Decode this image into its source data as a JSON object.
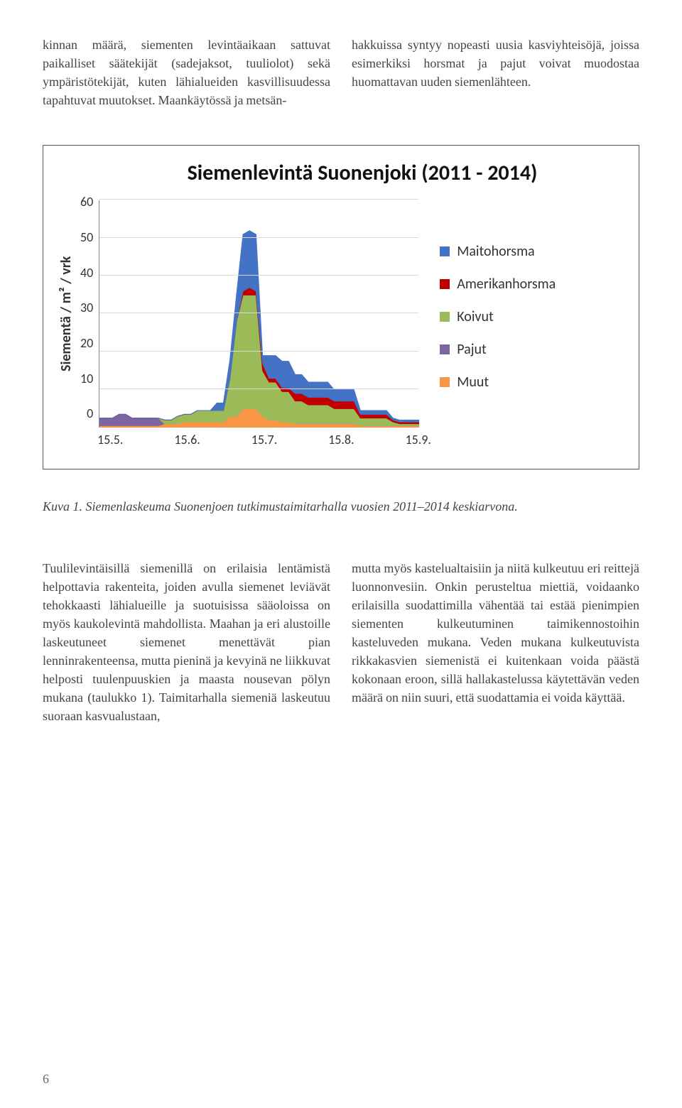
{
  "top": {
    "left": "kinnan määrä, siementen levintäaikaan sattuvat paikalliset säätekijät (sadejaksot, tuuliolot) sekä ympäristötekijät, kuten lähialueiden kasvillisuudessa tapahtuvat muutokset. Maankäytössä ja metsän-",
    "right": "hakkuissa syntyy nopeasti uusia kasviyhteisöjä, joissa esimerkiksi horsmat ja pajut voivat muodostaa huomattavan uuden siemenlähteen."
  },
  "chart": {
    "title": "Siemenlevintä Suonenjoki (2011 - 2014)",
    "ylabel": "Siementä / m² / vrk",
    "ylim": [
      0,
      60
    ],
    "yticks": [
      "60",
      "50",
      "40",
      "30",
      "20",
      "10",
      "0"
    ],
    "xticks": [
      "15.5.",
      "15.6.",
      "15.7.",
      "15.8.",
      "15.9."
    ],
    "grid_color": "#d9d9d9",
    "plot_border": "#888888",
    "legend": [
      {
        "label": "Maitohorsma",
        "color": "#4472c4"
      },
      {
        "label": "Amerikanhorsma",
        "color": "#c00000"
      },
      {
        "label": "Koivut",
        "color": "#9bbb59"
      },
      {
        "label": "Pajut",
        "color": "#8064a2"
      },
      {
        "label": "Muut",
        "color": "#f79646"
      }
    ],
    "series": {
      "muut": [
        0.5,
        0.5,
        0.5,
        0.5,
        0.5,
        0.5,
        0.5,
        0.5,
        0.5,
        0.5,
        1,
        1,
        1,
        1.5,
        1.5,
        1.5,
        1.5,
        1.5,
        1.5,
        1.5,
        3,
        3,
        5,
        5,
        5,
        3,
        2,
        2,
        1.5,
        1.5,
        1,
        1,
        1,
        1,
        1,
        1,
        1,
        1,
        1,
        1,
        0.5,
        0.5,
        0.5,
        0.5,
        0.5,
        0.5,
        0.5,
        0.5,
        0.5,
        0.5
      ],
      "pajut": [
        2,
        2,
        2,
        3,
        3,
        2,
        2,
        2,
        2,
        2,
        0,
        0,
        0,
        0,
        0,
        0,
        0,
        0,
        0,
        0,
        0,
        0,
        0,
        0,
        0,
        0,
        0,
        0,
        0,
        0,
        0,
        0,
        0,
        0,
        0,
        0,
        0,
        0,
        0,
        0,
        0,
        0,
        0,
        0,
        0,
        0,
        0,
        0,
        0,
        0
      ],
      "koivut": [
        0,
        0,
        0,
        0,
        0,
        0,
        0,
        0,
        0,
        0,
        1,
        1,
        2,
        2,
        2,
        3,
        3,
        3,
        3,
        3,
        10,
        25,
        30,
        30,
        30,
        12,
        10,
        10,
        8,
        8,
        6,
        6,
        5,
        5,
        5,
        5,
        4,
        4,
        4,
        4,
        2,
        2,
        2,
        2,
        2,
        1,
        0.5,
        0.5,
        0.5,
        0.5
      ],
      "amer": [
        0,
        0,
        0,
        0,
        0,
        0,
        0,
        0,
        0,
        0,
        0,
        0,
        0,
        0,
        0,
        0,
        0,
        0,
        0,
        0,
        0,
        0,
        1,
        2,
        1,
        2,
        1,
        1,
        1,
        1,
        2,
        2,
        2,
        2,
        2,
        2,
        2,
        2,
        2,
        2,
        1,
        1,
        1,
        1,
        1,
        0.5,
        0.5,
        0.5,
        0.5,
        0.5
      ],
      "maito": [
        0,
        0,
        0,
        0,
        0,
        0,
        0,
        0,
        0,
        0,
        0,
        0,
        0,
        0,
        0,
        0,
        0,
        0,
        2,
        2,
        5,
        7,
        15,
        15,
        15,
        2,
        6,
        6,
        7,
        7,
        5,
        5,
        4,
        4,
        4,
        4,
        3,
        3,
        3,
        3,
        1,
        1,
        1,
        1,
        1,
        0.5,
        0.5,
        0.5,
        0.5,
        0.5
      ]
    }
  },
  "caption": "Kuva 1. Siemenlaskeuma Suonenjoen tutkimustaimitarhalla vuosien 2011–2014 keskiarvona.",
  "bottom": {
    "left": "Tuulilevintäisillä siemenillä on erilaisia lentämistä helpottavia rakenteita, joiden avulla siemenet leviävät tehokkaasti lähialueille ja suotuisissa sääoloissa on myös kaukolevintä mahdollista. Maahan ja eri alustoille laskeutuneet siemenet menettävät pian lenninrakenteensa, mutta pieninä ja kevyinä ne liikkuvat helposti tuulenpuuskien ja maasta nousevan pölyn mukana (taulukko 1). Taimitarhalla siemeniä laskeutuu suoraan kasvualustaan,",
    "right": "mutta myös kastelualtaisiin ja niitä kulkeutuu eri reittejä luonnonvesiin. Onkin perusteltua miettiä, voidaanko erilaisilla suodattimilla vähentää tai estää pienimpien siementen kulkeutuminen taimikennostoihin kasteluveden mukana. Veden mukana kulkeutuvista rikkakasvien siemenistä ei kuitenkaan voida päästä kokonaan eroon, sillä hallakastelussa käytettävän veden määrä on niin suuri, että suodattamia ei voida käyttää."
  },
  "pagenum": "6"
}
